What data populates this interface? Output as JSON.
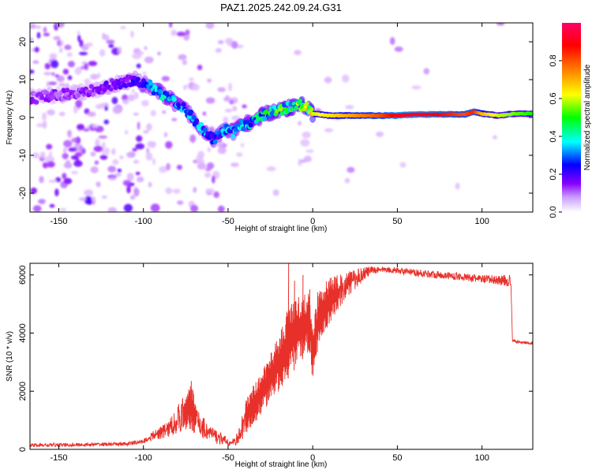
{
  "title": "PAZ1.2025.242.09.24.G31",
  "chart_data": [
    {
      "type": "heatmap",
      "title": "PAZ1.2025.242.09.24.G31",
      "xlabel": "Height of straight line (km)",
      "ylabel": "Frequency (Hz)",
      "xlim": [
        -167,
        130
      ],
      "ylim": [
        -25,
        25
      ],
      "xticks": [
        -150,
        -100,
        -50,
        0,
        50,
        100
      ],
      "yticks": [
        -20,
        -10,
        0,
        10,
        20
      ],
      "colorbar": {
        "label": "Normalized spectral amplitude",
        "range": [
          0,
          1
        ],
        "ticks": [
          "0.0",
          "0.2",
          "0.4",
          "0.6",
          "0.8"
        ],
        "colors": [
          "#ffffff",
          "#8a00ff",
          "#0000ff",
          "#00ffff",
          "#00ff00",
          "#ffff00",
          "#ff8000",
          "#ff0000",
          "#ff0066"
        ]
      },
      "ridge": {
        "x": [
          -167,
          -150,
          -130,
          -115,
          -105,
          -95,
          -85,
          -75,
          -65,
          -58,
          -52,
          -47,
          -42,
          -35,
          -28,
          -22,
          -15,
          -8,
          -4,
          0,
          10,
          20,
          30,
          40,
          50,
          60,
          70,
          80,
          90,
          95,
          100,
          110,
          120,
          130
        ],
        "freq": [
          5,
          6,
          7,
          9,
          10,
          8,
          5,
          2,
          -3,
          -6,
          -3,
          -4,
          -2,
          -1,
          1,
          1.5,
          2.5,
          3.5,
          3,
          1,
          0.5,
          0.5,
          0.5,
          0.5,
          0.5,
          0.8,
          0.8,
          0.8,
          0.8,
          1.5,
          1,
          0.5,
          1,
          1
        ],
        "amplitude": [
          0.1,
          0.1,
          0.12,
          0.15,
          0.2,
          0.3,
          0.35,
          0.3,
          0.3,
          0.25,
          0.3,
          0.3,
          0.35,
          0.35,
          0.4,
          0.45,
          0.45,
          0.5,
          0.55,
          0.6,
          0.65,
          0.7,
          0.75,
          0.8,
          0.9,
          0.92,
          0.9,
          0.85,
          0.8,
          0.85,
          0.7,
          0.6,
          0.55,
          0.5
        ]
      }
    },
    {
      "type": "line",
      "xlabel": "Height of straight line (km)",
      "ylabel": "SNR (10 * v/v)",
      "xlim": [
        -167,
        130
      ],
      "ylim": [
        0,
        6400
      ],
      "xticks": [
        -150,
        -100,
        -50,
        0,
        50,
        100
      ],
      "yticks": [
        0,
        2000,
        4000,
        6000
      ],
      "color": "#e8302a",
      "envelope_x": [
        -167,
        -140,
        -110,
        -100,
        -95,
        -85,
        -78,
        -72,
        -68,
        -62,
        -55,
        -48,
        -44,
        -40,
        -36,
        -30,
        -25,
        -20,
        -15,
        -10,
        -6,
        -2,
        0,
        3,
        6,
        10,
        15,
        20,
        25,
        30,
        35,
        40,
        50,
        60,
        70,
        80,
        90,
        100,
        110,
        115,
        117,
        118,
        120,
        130
      ],
      "envelope_low": [
        80,
        90,
        120,
        200,
        300,
        400,
        600,
        700,
        400,
        300,
        150,
        100,
        150,
        400,
        800,
        1200,
        1700,
        2000,
        2400,
        2800,
        3100,
        3400,
        2300,
        3400,
        3800,
        4300,
        4800,
        5200,
        5500,
        5800,
        6000,
        6100,
        6050,
        5950,
        5900,
        5850,
        5800,
        5700,
        5650,
        5600,
        5600,
        3700,
        3650,
        3600
      ],
      "envelope_high": [
        200,
        220,
        250,
        350,
        600,
        1000,
        1700,
        2300,
        1500,
        900,
        600,
        300,
        600,
        1600,
        2200,
        2700,
        3300,
        4000,
        4800,
        5300,
        5300,
        5400,
        4200,
        5500,
        5700,
        5900,
        6000,
        6100,
        6200,
        6300,
        6300,
        6300,
        6250,
        6200,
        6150,
        6100,
        6050,
        6000,
        6000,
        6000,
        6000,
        3800,
        3750,
        3700
      ],
      "spikes": [
        {
          "x": -14.5,
          "y": 6400
        },
        {
          "x": -72,
          "y": 2350
        },
        {
          "x": -6,
          "y": 6000
        },
        {
          "x": -11,
          "y": 5800
        },
        {
          "x": -2,
          "y": 5500
        }
      ]
    }
  ]
}
